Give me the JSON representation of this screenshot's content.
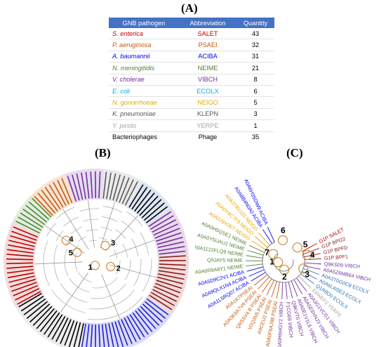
{
  "panels": {
    "a": "(A)",
    "b": "(B)",
    "c": "(C)"
  },
  "table": {
    "headers": [
      "GNB pathogen",
      "Abbreviation",
      "Quantity"
    ],
    "rows": [
      {
        "name": "S. enterica",
        "abbr": "SALET",
        "qty": "43",
        "color": "#c00000",
        "italic": true
      },
      {
        "name": "P. aeruginosa",
        "abbr": "PSAEI",
        "qty": "32",
        "color": "#c55a11",
        "italic": true
      },
      {
        "name": "A. baumannii",
        "abbr": "ACIBA",
        "qty": "31",
        "color": "#0000ff",
        "italic": true
      },
      {
        "name": "N. meningitidis",
        "abbr": "NEIME",
        "qty": "21",
        "color": "#548235",
        "italic": true
      },
      {
        "name": "V. cholerae",
        "abbr": "VIBCH",
        "qty": "8",
        "color": "#7030a0",
        "italic": true
      },
      {
        "name": "E. coli",
        "abbr": "ECOLX",
        "qty": "6",
        "color": "#00b0f0",
        "italic": true
      },
      {
        "name": "N. gonorrhoeae",
        "abbr": "NEIGO",
        "qty": "5",
        "color": "#e6a800",
        "italic": true
      },
      {
        "name": "K. pneumoniae",
        "abbr": "KLEPN",
        "qty": "3",
        "color": "#595959",
        "italic": true
      },
      {
        "name": "Y. pestis",
        "abbr": "YERPE",
        "qty": "1",
        "color": "#a6a6a6",
        "italic": true
      },
      {
        "name": "Bacteriophages",
        "abbr": "Phage",
        "qty": "35",
        "color": "#000000",
        "italic": false
      }
    ]
  },
  "tree_b": {
    "node_labels": [
      "1",
      "2",
      "3",
      "4",
      "5"
    ]
  },
  "tree_c": {
    "node_labels": [
      "1",
      "2",
      "3",
      "4",
      "5",
      "6",
      "7"
    ],
    "leaves": [
      {
        "text": "G1P SALET",
        "color": "#c00000"
      },
      {
        "text": "G1P BPI22",
        "color": "#8b1a1a"
      },
      {
        "text": "G1P BPFD",
        "color": "#8b1a1a"
      },
      {
        "text": "G1P BPF1",
        "color": "#8b1a1a"
      },
      {
        "text": "Q9KS09 VIBCH",
        "color": "#7030a0"
      },
      {
        "text": "A0A5Z6MB64 VIBCH",
        "color": "#7030a0"
      },
      {
        "text": "A0A3T0G0C8 ECOLX",
        "color": "#2e75b6"
      },
      {
        "text": "A0A6L4I5E3 ECOLX",
        "color": "#2e75b6"
      },
      {
        "text": "Q1R8D0 ECOLX",
        "color": "#2e75b6"
      },
      {
        "text": "E6WEP2 YERPE",
        "color": "#a6a6a6"
      },
      {
        "text": "A0A3G1VCG1 VIBCH",
        "color": "#7030a0"
      },
      {
        "text": "A0A5E9XNJ3 VIBCH",
        "color": "#7030a0"
      },
      {
        "text": "A0A0E1V1L6 VIBCH",
        "color": "#7030a0"
      },
      {
        "text": "Q9KVT0 VIBCH",
        "color": "#7030a0"
      },
      {
        "text": "F1CG69 VIBCH",
        "color": "#7030a0"
      },
      {
        "text": "A0A0H6HGY2 VIBCH",
        "color": "#7030a0"
      },
      {
        "text": "A0A0F6AJ98 PSEAI",
        "color": "#c55a11"
      },
      {
        "text": "A9CEU2 PSEAI",
        "color": "#c55a11"
      },
      {
        "text": "V0Q3N5 PSEAI",
        "color": "#c55a11"
      },
      {
        "text": "Q9SSV4 B PSEAI",
        "color": "#c55a11"
      },
      {
        "text": "A0A0K8A7V9 PSEAI",
        "color": "#c55a11"
      },
      {
        "text": "A0A1K7PSEAI",
        "color": "#c55a11"
      },
      {
        "text": "A0A1L5RQ07 ACIBA",
        "color": "#0000ff"
      },
      {
        "text": "A0A9QLX1N4 ACIBA",
        "color": "#0000ff"
      },
      {
        "text": "A0A5D9C2V1 ACIBA",
        "color": "#0000ff"
      },
      {
        "text": "A0A0R9A8Y1 NEIME",
        "color": "#548235"
      },
      {
        "text": "Q9JAY5 NEIME",
        "color": "#548235"
      },
      {
        "text": "A0A1122FLQ9 NEIME",
        "color": "#548235"
      },
      {
        "text": "A0A0Y5UAU1 NEIME",
        "color": "#548235"
      },
      {
        "text": "A0A0H5QSE1 NEIME",
        "color": "#548235"
      },
      {
        "text": "A0A0J9X0E7 NEIGO",
        "color": "#e6a800"
      },
      {
        "text": "A0A0Y8C7F9 NEIGO",
        "color": "#e6a800"
      },
      {
        "text": "A0A378VJZ0 NEIGO",
        "color": "#e6a800"
      },
      {
        "text": "A0A8B4N0A0 ACIBA",
        "color": "#0000ff"
      },
      {
        "text": "A0A6H3SDW9 ACIBA",
        "color": "#0000ff"
      }
    ]
  }
}
